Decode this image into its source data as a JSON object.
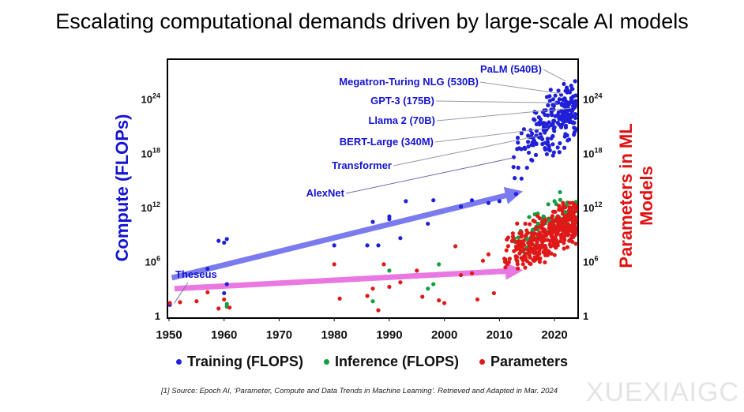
{
  "title": "Escalating computational demands driven by large-scale AI models",
  "chart_data": {
    "type": "scatter",
    "title": "Escalating computational demands driven by large-scale AI models",
    "xlabel": "",
    "ylabel_left": "Compute (FLOPs)",
    "ylabel_right": "Parameters in ML Models",
    "xlim": [
      1950,
      2024
    ],
    "ylim_log10": [
      0,
      28
    ],
    "x_ticks": [
      "1950",
      "1960",
      "1970",
      "1980",
      "1990",
      "2000",
      "2010",
      "2020"
    ],
    "y_ticks_left": [
      {
        "base": "10",
        "exp": "24",
        "value": 24
      },
      {
        "base": "10",
        "exp": "18",
        "value": 18
      },
      {
        "base": "10",
        "exp": "12",
        "value": 12
      },
      {
        "base": "10",
        "exp": "6",
        "value": 6
      },
      {
        "base": "1",
        "exp": "",
        "value": 0
      }
    ],
    "y_ticks_right": [
      {
        "base": "10",
        "exp": "24",
        "value": 24
      },
      {
        "base": "10",
        "exp": "18",
        "value": 18
      },
      {
        "base": "10",
        "exp": "12",
        "value": 12
      },
      {
        "base": "10",
        "exp": "6",
        "value": 6
      },
      {
        "base": "1",
        "exp": "",
        "value": 0
      }
    ],
    "series": [
      {
        "name": "Training (FLOPS)",
        "color": "#2020d8",
        "points": [
          [
            1950,
            1.2
          ],
          [
            1957,
            5.2
          ],
          [
            1959,
            8.3
          ],
          [
            1960,
            8.1
          ],
          [
            1960.5,
            8.5
          ],
          [
            1960.5,
            3.5
          ],
          [
            1960,
            2.5
          ],
          [
            1980,
            7.8
          ],
          [
            1986,
            7.8
          ],
          [
            1987,
            10.4
          ],
          [
            1988,
            7.8
          ],
          [
            1990,
            10.7
          ],
          [
            1990,
            11.0
          ],
          [
            1992,
            8.6
          ],
          [
            1993,
            12.7
          ],
          [
            1997,
            10.2
          ],
          [
            1998,
            12.8
          ],
          [
            2003,
            12.1
          ],
          [
            2005,
            12.8
          ],
          [
            2008,
            12.5
          ],
          [
            2010,
            12.7
          ],
          [
            2013,
            13.5
          ],
          [
            2014,
            15.2
          ],
          [
            2015,
            16.4
          ]
        ]
      },
      {
        "name": "Inference (FLOPS)",
        "color": "#10a040",
        "points": [
          [
            1960.5,
            1.0
          ],
          [
            1960.5,
            1.3
          ],
          [
            1987,
            1.6
          ],
          [
            1990,
            5.0
          ],
          [
            1997,
            3.0
          ],
          [
            1998,
            3.5
          ],
          [
            1999,
            5.7
          ],
          [
            2015,
            8.5
          ],
          [
            2016,
            9.5
          ],
          [
            2017,
            10.2
          ],
          [
            2018,
            11.0
          ],
          [
            2019,
            10.6
          ],
          [
            2020,
            12.7
          ],
          [
            2021,
            13.7
          ],
          [
            2022,
            11.5
          ]
        ]
      },
      {
        "name": "Parameters",
        "color": "#e01818",
        "points": [
          [
            1950,
            1.4
          ],
          [
            1952,
            1.5
          ],
          [
            1955,
            1.6
          ],
          [
            1957,
            2.6
          ],
          [
            1959,
            0.8
          ],
          [
            1960,
            1.8
          ],
          [
            1961,
            0.9
          ],
          [
            1980,
            5.7
          ],
          [
            1981,
            1.9
          ],
          [
            1986,
            2.2
          ],
          [
            1987,
            3.0
          ],
          [
            1988,
            0.6
          ],
          [
            1989,
            5.7
          ],
          [
            1990,
            3.2
          ],
          [
            1992,
            3.7
          ],
          [
            1995,
            5.0
          ],
          [
            1996,
            2.1
          ],
          [
            1999,
            1.7
          ],
          [
            2000,
            1.4
          ],
          [
            2002,
            7.7
          ],
          [
            2003,
            4.5
          ],
          [
            2005,
            4.7
          ],
          [
            2006,
            1.8
          ],
          [
            2007,
            6.1
          ],
          [
            2008,
            6.8
          ],
          [
            2009,
            2.5
          ]
        ]
      }
    ],
    "dense_clusters": [
      {
        "series": "Training (FLOPS)",
        "x_range": [
          2012,
          2024
        ],
        "y_log10_range": [
          13,
          26
        ],
        "count": 230
      },
      {
        "series": "Inference (FLOPS)",
        "x_range": [
          2012,
          2024
        ],
        "y_log10_range": [
          5,
          13
        ],
        "count": 70
      },
      {
        "series": "Parameters",
        "x_range": [
          2010,
          2024
        ],
        "y_log10_range": [
          3,
          12.5
        ],
        "count": 400
      }
    ],
    "trend_arrows": [
      {
        "name": "compute-trend-arrow",
        "color": "#7b7bf0",
        "from": [
          1950.5,
          4.2
        ],
        "to": [
          2013,
          13.6
        ]
      },
      {
        "name": "parameters-trend-arrow",
        "color": "#ea78e2",
        "from": [
          1951,
          3.0
        ],
        "to": [
          2013,
          5.0
        ]
      }
    ],
    "annotations": [
      {
        "name": "annotation-palm",
        "text": "PaLM (540B)",
        "x": 2022,
        "y": 26.0
      },
      {
        "name": "annotation-megatron-turing-nlg",
        "text": "Megatron-Turing NLG (530B)",
        "x": 2021.5,
        "y": 24.6
      },
      {
        "name": "annotation-gpt-3",
        "text": "GPT-3 (175B)",
        "x": 2020.5,
        "y": 23.6
      },
      {
        "name": "annotation-llama-2",
        "text": "Llama 2 (70B)",
        "x": 2023,
        "y": 23.0
      },
      {
        "name": "annotation-bert-large",
        "text": "BERT-Large (340M)",
        "x": 2018.8,
        "y": 20.8
      },
      {
        "name": "annotation-transformer",
        "text": "Transformer",
        "x": 2017.5,
        "y": 20.0
      },
      {
        "name": "annotation-alexnet",
        "text": "AlexNet",
        "x": 2012.5,
        "y": 17.5
      },
      {
        "name": "annotation-theseus",
        "text": "Theseus",
        "x": 1950.5,
        "y": 1.2
      }
    ]
  },
  "legend": [
    {
      "label": "Training (FLOPS)",
      "color": "#2020d8"
    },
    {
      "label": "Inference (FLOPS)",
      "color": "#10a040"
    },
    {
      "label": "Parameters",
      "color": "#e01818"
    }
  ],
  "source_note": "[1] Source: Epoch AI, ‘Parameter, Compute and Data Trends in Machine Learning’. Retrieved and Adapted in Mar. 2024",
  "watermark": "XUEXIAIGC"
}
